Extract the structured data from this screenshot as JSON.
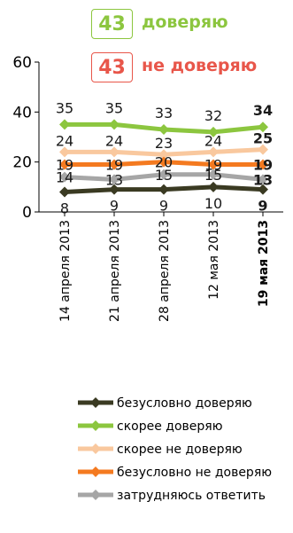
{
  "badges": [
    {
      "value": "43",
      "label": "доверяю",
      "color": "#8cc63f"
    },
    {
      "value": "43",
      "label": "не доверяю",
      "color": "#e8564a"
    }
  ],
  "chart_data": {
    "type": "line",
    "categories": [
      "14 апреля 2013",
      "21 апреля 2013",
      "28 апреля 2013",
      "12 мая 2013",
      "19 мая 2013"
    ],
    "ylim": [
      0,
      60
    ],
    "yticks": [
      0,
      20,
      40,
      60
    ],
    "grid": false,
    "legend_position": "bottom",
    "series": [
      {
        "name": "безусловно доверяю",
        "color": "#3a3a22",
        "values": [
          8,
          9,
          9,
          10,
          9
        ]
      },
      {
        "name": "скорее доверяю",
        "color": "#8cc63f",
        "values": [
          35,
          35,
          33,
          32,
          34
        ]
      },
      {
        "name": "скорее не доверяю",
        "color": "#f9c89e",
        "values": [
          24,
          24,
          23,
          24,
          25
        ]
      },
      {
        "name": "безусловно не доверяю",
        "color": "#f47a20",
        "values": [
          19,
          19,
          20,
          19,
          19
        ]
      },
      {
        "name": "затрудняюсь ответить",
        "color": "#a6a6a6",
        "values": [
          14,
          13,
          15,
          15,
          13
        ]
      }
    ]
  }
}
